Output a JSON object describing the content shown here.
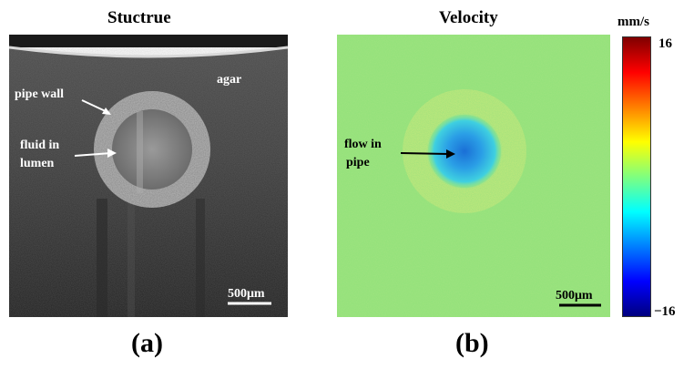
{
  "panel_a": {
    "title": "Stuctrue",
    "label": "(a)",
    "annotations": {
      "agar": "agar",
      "pipe_wall": "pipe wall",
      "fluid_line1": "fluid in",
      "fluid_line2": "lumen"
    },
    "scale_bar": "500μm"
  },
  "panel_b": {
    "title": "Velocity",
    "label": "(b)",
    "annotations": {
      "flow_line1": "flow in",
      "flow_line2": "pipe"
    },
    "scale_bar": "500μm"
  },
  "colorbar": {
    "unit": "mm/s",
    "max": "16",
    "min": "−16",
    "colors": [
      "#7f0000",
      "#ff0000",
      "#ff7f00",
      "#ffff00",
      "#7fff7f",
      "#00ffff",
      "#007fff",
      "#0000ff",
      "#00007f"
    ]
  }
}
